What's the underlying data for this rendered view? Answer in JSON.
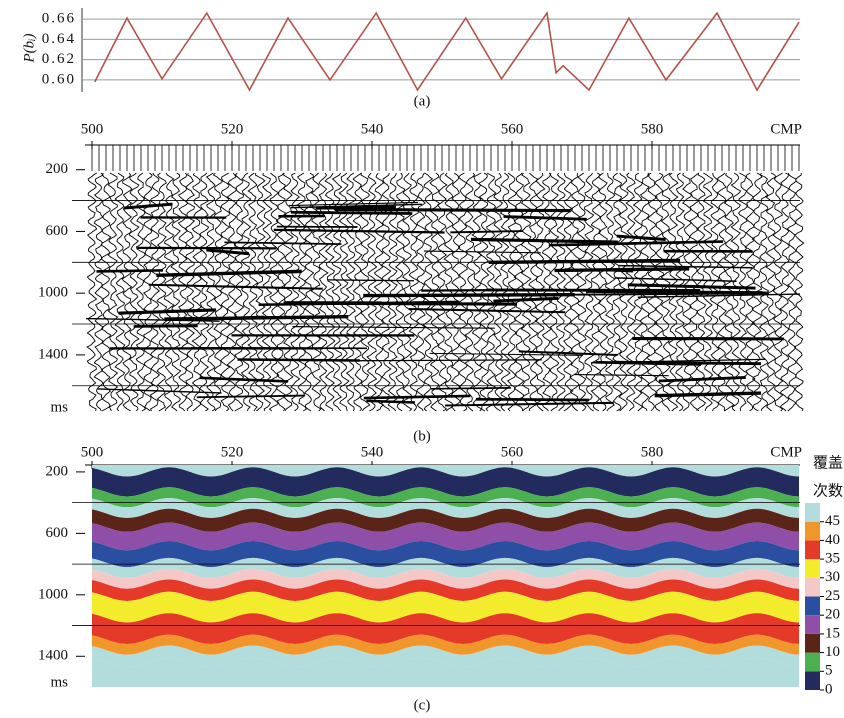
{
  "chart_data": [
    {
      "type": "line",
      "ylabel": "P(bᵢ)",
      "caption": "(a)",
      "color": "#b5524a",
      "grid": true,
      "x": [
        500.4,
        505,
        510,
        516.4,
        522.5,
        528,
        534,
        540.6,
        546.5,
        553.4,
        558.5,
        565,
        566.3,
        567.3,
        571,
        576.7,
        582,
        589.3,
        595,
        601
      ],
      "values": [
        0.598,
        0.661,
        0.601,
        0.666,
        0.59,
        0.661,
        0.6,
        0.666,
        0.59,
        0.661,
        0.601,
        0.666,
        0.607,
        0.614,
        0.59,
        0.661,
        0.6,
        0.666,
        0.59,
        0.657
      ],
      "xlim": [
        500,
        601
      ],
      "ylim": [
        0.588,
        0.671
      ],
      "yticks": [
        {
          "value": 0.6,
          "label": "0.60"
        },
        {
          "value": 0.62,
          "label": "0.62"
        },
        {
          "value": 0.64,
          "label": "0.64"
        },
        {
          "value": 0.66,
          "label": "0.66"
        }
      ]
    },
    {
      "type": "wiggle",
      "caption": "(b)",
      "xlabel": "CMP",
      "ylabel": "ms",
      "xlim": [
        500,
        601
      ],
      "xticks": [
        500,
        520,
        540,
        560,
        580
      ],
      "ylim": [
        40,
        1770
      ],
      "yticks": [
        200,
        600,
        1000,
        1400
      ],
      "yminor": [
        400,
        800,
        1200,
        1600
      ]
    },
    {
      "type": "heatmap",
      "caption": "(c)",
      "xlabel": "CMP",
      "ylabel": "ms",
      "colorbar_title": [
        "覆盖",
        "次数"
      ],
      "xlim": [
        500,
        601
      ],
      "xticks": [
        500,
        520,
        540,
        560,
        580
      ],
      "ylim": [
        155,
        1600
      ],
      "yticks": [
        200,
        600,
        1000,
        1400
      ],
      "yminor": [
        400,
        800,
        1200
      ],
      "clim": [
        0,
        50
      ],
      "cticks": [
        0,
        5,
        10,
        15,
        20,
        25,
        30,
        35,
        40,
        45
      ],
      "colors": [
        "#232a5e",
        "#4caf50",
        "#5b2418",
        "#8f4fa8",
        "#2a4fa0",
        "#f5c8c8",
        "#f3ec2c",
        "#e5392a",
        "#f0962a",
        "#b3dcdc"
      ]
    }
  ]
}
